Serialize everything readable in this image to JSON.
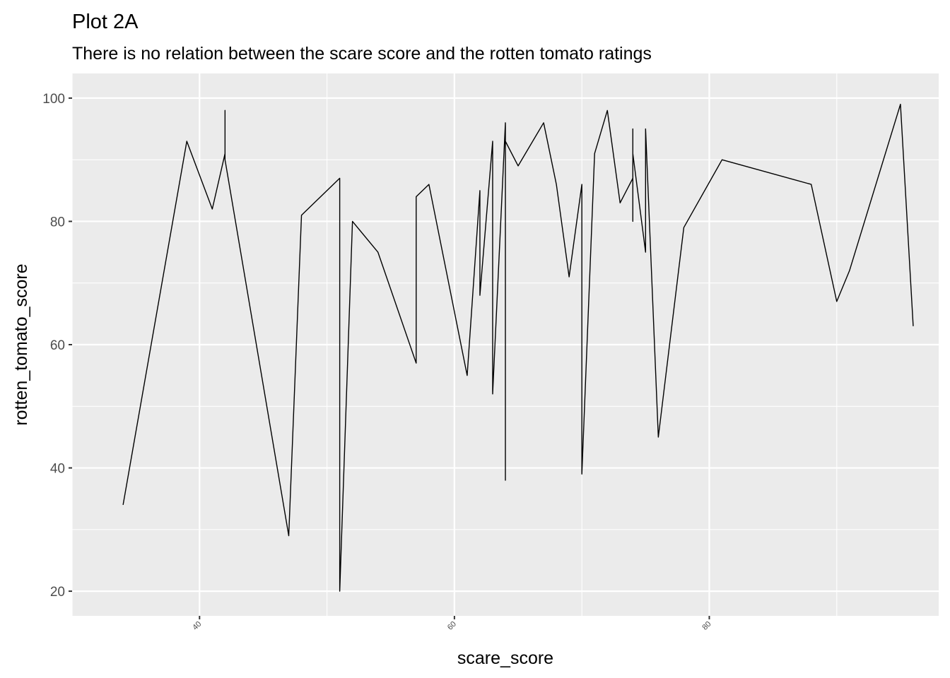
{
  "chart_data": {
    "type": "line",
    "title": "Plot 2A",
    "subtitle": "There is no relation between the scare score and the rotten tomato ratings",
    "xlabel": "scare_score",
    "ylabel": "rotten_tomato_score",
    "xlim": [
      30,
      98
    ],
    "ylim": [
      16,
      104
    ],
    "x_ticks": [
      40,
      60,
      80
    ],
    "y_ticks": [
      20,
      40,
      60,
      80,
      100
    ],
    "x_minor": [
      30,
      50,
      70,
      90
    ],
    "y_minor": [
      30,
      50,
      70,
      90
    ],
    "grid": true,
    "panel_background": "#ebebeb",
    "grid_color": "#ffffff",
    "line_color": "#000000",
    "series": [
      {
        "points": [
          [
            34,
            34
          ],
          [
            39,
            93
          ],
          [
            41,
            82
          ],
          [
            42,
            91
          ],
          [
            42,
            98
          ],
          [
            42,
            90
          ],
          [
            47,
            29
          ],
          [
            48,
            81
          ],
          [
            49,
            83
          ],
          [
            51,
            87
          ],
          [
            51,
            20
          ],
          [
            52,
            80
          ],
          [
            54,
            75
          ],
          [
            57,
            57
          ],
          [
            57,
            84
          ],
          [
            58,
            86
          ],
          [
            61,
            55
          ],
          [
            62,
            85
          ],
          [
            62,
            68
          ],
          [
            63,
            93
          ],
          [
            63,
            52
          ],
          [
            64,
            96
          ],
          [
            64,
            38
          ],
          [
            64,
            93
          ],
          [
            65,
            89
          ],
          [
            67,
            96
          ],
          [
            68,
            86
          ],
          [
            69,
            71
          ],
          [
            70,
            86
          ],
          [
            70,
            39
          ],
          [
            71,
            91
          ],
          [
            72,
            98
          ],
          [
            73,
            83
          ],
          [
            74,
            87
          ],
          [
            74,
            95
          ],
          [
            74,
            80
          ],
          [
            74,
            91
          ],
          [
            75,
            75
          ],
          [
            75,
            95
          ],
          [
            76,
            45
          ],
          [
            78,
            79
          ],
          [
            81,
            90
          ],
          [
            88,
            86
          ],
          [
            90,
            67
          ],
          [
            91,
            72
          ],
          [
            95,
            99
          ],
          [
            96,
            63
          ]
        ]
      }
    ]
  }
}
